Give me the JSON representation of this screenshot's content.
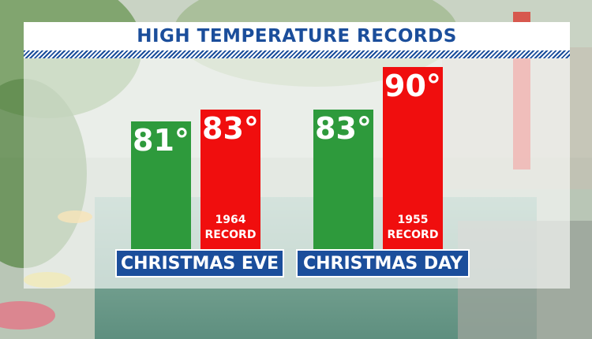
{
  "title": "HIGH TEMPERATURE RECORDS",
  "colors": {
    "title_text": "#1b4e9b",
    "label_bg": "#1b4e9b",
    "normal_bar": "#2e9a3c",
    "record_bar": "#f00e0e"
  },
  "chart_data": {
    "type": "bar",
    "title": "HIGH TEMPERATURE RECORDS",
    "categories": [
      "CHRISTMAS EVE",
      "CHRISTMAS DAY"
    ],
    "series": [
      {
        "values": [
          81,
          83
        ],
        "labels": [
          "81°",
          "83°"
        ],
        "color": "#2e9a3c"
      },
      {
        "values": [
          83,
          90
        ],
        "labels": [
          "83°",
          "90°"
        ],
        "color": "#f00e0e",
        "annotations": [
          [
            "1964",
            "RECORD"
          ],
          [
            "1955",
            "RECORD"
          ]
        ]
      }
    ],
    "grid": false
  }
}
